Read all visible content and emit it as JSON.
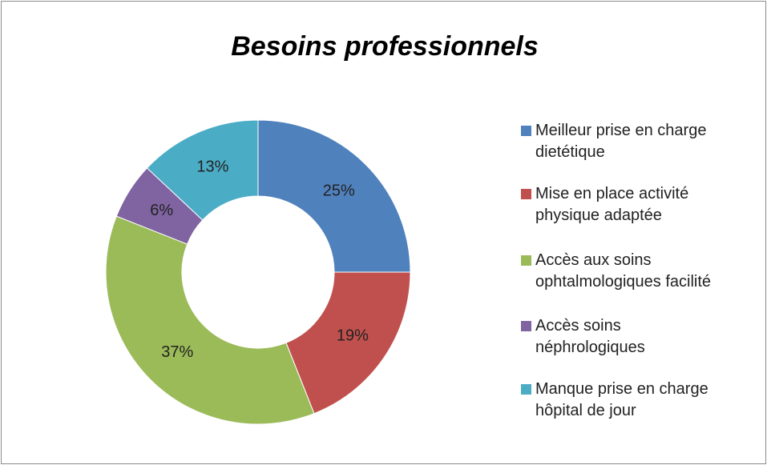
{
  "chart_data": {
    "type": "donut",
    "title": "Besoins professionnels",
    "categories": [
      "Meilleur prise en charge\ndietétique",
      "Mise en place activité\nphysique adaptée",
      "Accès aux soins\nophtalmologiques facilité",
      "Accès soins\nnéphrologiques",
      "Manque prise en charge\nhôpital de jour"
    ],
    "values": [
      25,
      19,
      37,
      6,
      13
    ],
    "value_labels": [
      "25%",
      "19%",
      "37%",
      "6%",
      "13%"
    ],
    "colors": [
      "#4f81bd",
      "#c0504d",
      "#9bbb59",
      "#8064a2",
      "#4bacc6"
    ],
    "legend": "right"
  }
}
